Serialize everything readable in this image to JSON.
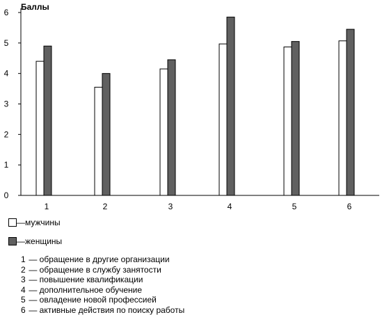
{
  "chart_data": {
    "type": "bar",
    "ylabel": "Баллы",
    "categories": [
      "1",
      "2",
      "3",
      "4",
      "5",
      "6"
    ],
    "ylim": [
      0,
      6
    ],
    "yticks": [
      "0",
      "1",
      "2",
      "3",
      "4",
      "5",
      "6"
    ],
    "series": [
      {
        "name": "мужчины",
        "color": "#ffffff",
        "values": [
          4.4,
          3.55,
          4.15,
          4.97,
          4.87,
          5.07
        ]
      },
      {
        "name": "женщины",
        "color": "#606060",
        "values": [
          4.9,
          4.0,
          4.45,
          5.85,
          5.05,
          5.45
        ]
      }
    ],
    "legend": [
      {
        "dash": "—",
        "label": "мужчины"
      },
      {
        "dash": "—",
        "label": "женщины"
      }
    ],
    "notes": [
      {
        "num": "1",
        "text": "— обращение в другие организации"
      },
      {
        "num": "2",
        "text": "— обращение в службу занятости"
      },
      {
        "num": "3",
        "text": "— повышение квалификации"
      },
      {
        "num": "4",
        "text": "— дополнительное обучение"
      },
      {
        "num": "5",
        "text": "— овладение новой профессией"
      },
      {
        "num": "6",
        "text": "— активные действия по поиску работы"
      }
    ]
  }
}
